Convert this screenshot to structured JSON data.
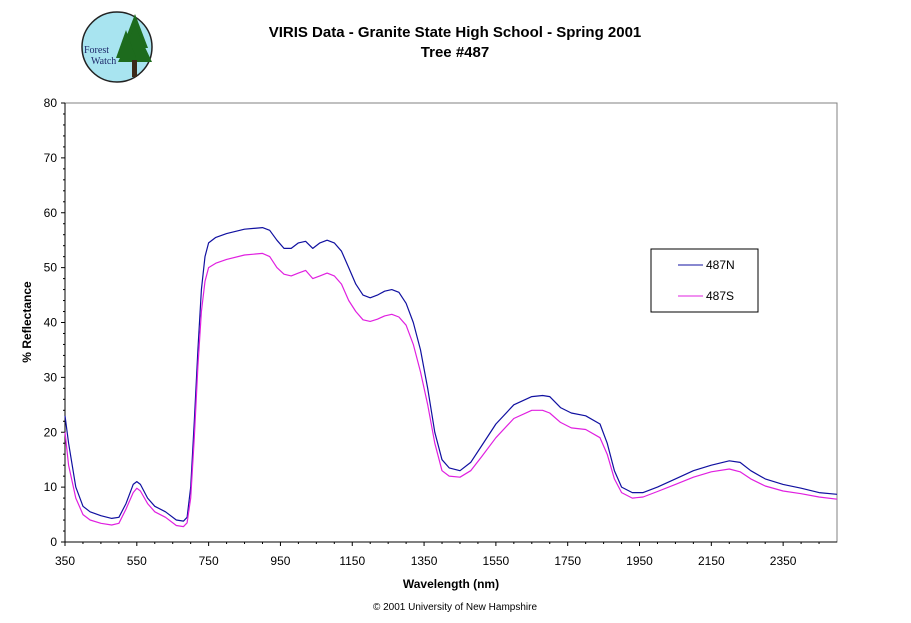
{
  "logo": {
    "line1": "Forest",
    "line2": "Watch",
    "colors": {
      "background": "#a8e4f0",
      "tree": "#1d6b1d",
      "trunk": "#3b2a1a",
      "border": "#222222"
    }
  },
  "chart_data": {
    "type": "line",
    "title": "VIRIS Data - Granite State High School - Spring 2001",
    "subtitle": "Tree #487",
    "xlabel": "Wavelength (nm)",
    "ylabel": "% Reflectance",
    "xlim": [
      350,
      2500
    ],
    "ylim": [
      0,
      80
    ],
    "xticks": [
      350,
      550,
      750,
      950,
      1150,
      1350,
      1550,
      1750,
      1950,
      2150,
      2350
    ],
    "yticks": [
      0,
      10,
      20,
      30,
      40,
      50,
      60,
      70,
      80
    ],
    "grid": false,
    "legend_position": "right",
    "series": [
      {
        "name": "487N",
        "color": "#1010a0",
        "points": [
          [
            350,
            23
          ],
          [
            360,
            18
          ],
          [
            380,
            10
          ],
          [
            400,
            6.5
          ],
          [
            420,
            5.5
          ],
          [
            450,
            4.8
          ],
          [
            480,
            4.3
          ],
          [
            500,
            4.5
          ],
          [
            520,
            7
          ],
          [
            540,
            10.5
          ],
          [
            550,
            11
          ],
          [
            560,
            10.5
          ],
          [
            580,
            8
          ],
          [
            600,
            6.5
          ],
          [
            630,
            5.5
          ],
          [
            660,
            4
          ],
          [
            680,
            3.8
          ],
          [
            690,
            4.5
          ],
          [
            700,
            10
          ],
          [
            710,
            22
          ],
          [
            720,
            35
          ],
          [
            730,
            46
          ],
          [
            740,
            52
          ],
          [
            750,
            54.5
          ],
          [
            770,
            55.5
          ],
          [
            800,
            56.2
          ],
          [
            850,
            57
          ],
          [
            900,
            57.3
          ],
          [
            920,
            56.8
          ],
          [
            940,
            55
          ],
          [
            960,
            53.5
          ],
          [
            980,
            53.5
          ],
          [
            1000,
            54.5
          ],
          [
            1020,
            54.8
          ],
          [
            1040,
            53.5
          ],
          [
            1060,
            54.5
          ],
          [
            1080,
            55
          ],
          [
            1100,
            54.5
          ],
          [
            1120,
            53
          ],
          [
            1140,
            50
          ],
          [
            1160,
            47
          ],
          [
            1180,
            45
          ],
          [
            1200,
            44.5
          ],
          [
            1220,
            45
          ],
          [
            1240,
            45.7
          ],
          [
            1260,
            46
          ],
          [
            1280,
            45.5
          ],
          [
            1300,
            43.5
          ],
          [
            1320,
            40
          ],
          [
            1340,
            35
          ],
          [
            1360,
            28
          ],
          [
            1380,
            20
          ],
          [
            1400,
            15
          ],
          [
            1420,
            13.5
          ],
          [
            1450,
            13
          ],
          [
            1480,
            14.5
          ],
          [
            1510,
            17.5
          ],
          [
            1550,
            21.5
          ],
          [
            1600,
            25
          ],
          [
            1650,
            26.5
          ],
          [
            1680,
            26.7
          ],
          [
            1700,
            26.5
          ],
          [
            1730,
            24.5
          ],
          [
            1760,
            23.5
          ],
          [
            1800,
            23
          ],
          [
            1840,
            21.5
          ],
          [
            1860,
            18
          ],
          [
            1880,
            13
          ],
          [
            1900,
            10
          ],
          [
            1930,
            9
          ],
          [
            1960,
            9
          ],
          [
            2000,
            10
          ],
          [
            2050,
            11.5
          ],
          [
            2100,
            13
          ],
          [
            2150,
            14
          ],
          [
            2200,
            14.8
          ],
          [
            2230,
            14.5
          ],
          [
            2260,
            13
          ],
          [
            2300,
            11.5
          ],
          [
            2350,
            10.5
          ],
          [
            2400,
            9.8
          ],
          [
            2450,
            9
          ],
          [
            2500,
            8.7
          ]
        ]
      },
      {
        "name": "487S",
        "color": "#e020e0",
        "points": [
          [
            350,
            20
          ],
          [
            360,
            14
          ],
          [
            380,
            8
          ],
          [
            400,
            5
          ],
          [
            420,
            4
          ],
          [
            450,
            3.4
          ],
          [
            480,
            3.1
          ],
          [
            500,
            3.4
          ],
          [
            520,
            6
          ],
          [
            540,
            9
          ],
          [
            550,
            9.8
          ],
          [
            560,
            9.3
          ],
          [
            580,
            7
          ],
          [
            600,
            5.5
          ],
          [
            630,
            4.5
          ],
          [
            660,
            3
          ],
          [
            680,
            2.8
          ],
          [
            690,
            3.5
          ],
          [
            700,
            8
          ],
          [
            710,
            19
          ],
          [
            720,
            32
          ],
          [
            730,
            42
          ],
          [
            740,
            47.5
          ],
          [
            750,
            50
          ],
          [
            770,
            50.8
          ],
          [
            800,
            51.5
          ],
          [
            850,
            52.3
          ],
          [
            900,
            52.6
          ],
          [
            920,
            52
          ],
          [
            940,
            50
          ],
          [
            960,
            48.8
          ],
          [
            980,
            48.5
          ],
          [
            1000,
            49
          ],
          [
            1020,
            49.5
          ],
          [
            1040,
            48
          ],
          [
            1060,
            48.5
          ],
          [
            1080,
            49
          ],
          [
            1100,
            48.5
          ],
          [
            1120,
            47
          ],
          [
            1140,
            44
          ],
          [
            1160,
            42
          ],
          [
            1180,
            40.5
          ],
          [
            1200,
            40.2
          ],
          [
            1220,
            40.6
          ],
          [
            1240,
            41.2
          ],
          [
            1260,
            41.5
          ],
          [
            1280,
            41
          ],
          [
            1300,
            39.5
          ],
          [
            1320,
            36
          ],
          [
            1340,
            31
          ],
          [
            1360,
            25
          ],
          [
            1380,
            18
          ],
          [
            1400,
            13
          ],
          [
            1420,
            12
          ],
          [
            1450,
            11.8
          ],
          [
            1480,
            13
          ],
          [
            1510,
            15.5
          ],
          [
            1550,
            19
          ],
          [
            1600,
            22.5
          ],
          [
            1650,
            24
          ],
          [
            1680,
            24
          ],
          [
            1700,
            23.5
          ],
          [
            1730,
            21.8
          ],
          [
            1760,
            20.8
          ],
          [
            1800,
            20.5
          ],
          [
            1840,
            19
          ],
          [
            1860,
            16
          ],
          [
            1880,
            11.5
          ],
          [
            1900,
            9
          ],
          [
            1930,
            8
          ],
          [
            1960,
            8.2
          ],
          [
            2000,
            9.2
          ],
          [
            2050,
            10.5
          ],
          [
            2100,
            11.8
          ],
          [
            2150,
            12.8
          ],
          [
            2200,
            13.3
          ],
          [
            2230,
            12.8
          ],
          [
            2260,
            11.5
          ],
          [
            2300,
            10.2
          ],
          [
            2350,
            9.3
          ],
          [
            2400,
            8.8
          ],
          [
            2450,
            8.2
          ],
          [
            2500,
            7.8
          ]
        ]
      }
    ]
  },
  "footer": {
    "copyright": "© 2001 University of New Hampshire"
  }
}
